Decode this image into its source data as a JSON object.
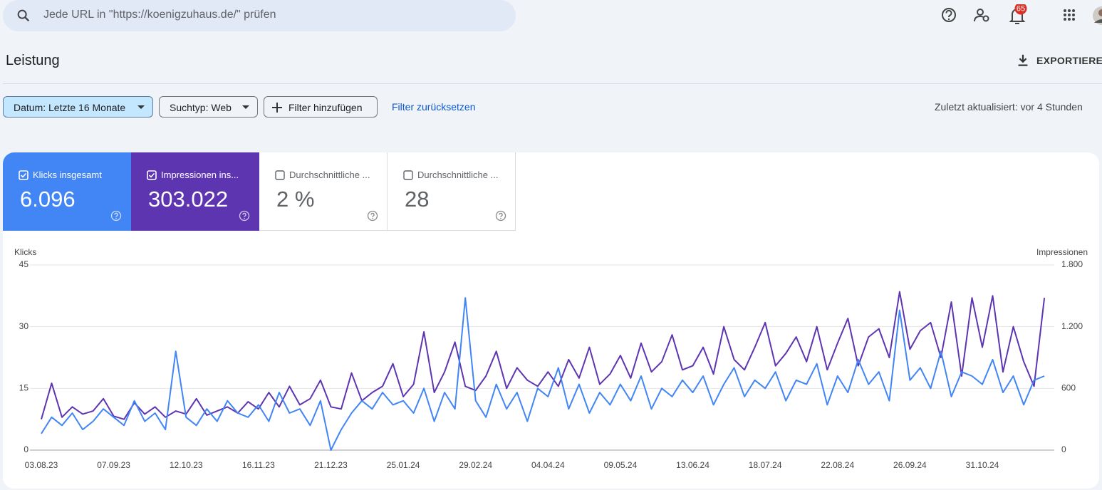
{
  "header": {
    "search_placeholder": "Jede URL in \"https://koenigzuhaus.de/\" prüfen",
    "notification_count": "65"
  },
  "page": {
    "title": "Leistung",
    "export": "EXPORTIEREN"
  },
  "filters": {
    "chips": [
      "Datum: Letzte 16 Monate",
      "Suchtyp: Web",
      "Filter hinzufügen"
    ],
    "reset": "Filter zurücksetzen",
    "updated": "Zuletzt aktualisiert: vor 4 Stunden"
  },
  "metrics": [
    {
      "label": "Klicks insgesamt",
      "value": "6.096"
    },
    {
      "label": "Impressionen ins...",
      "value": "303.022"
    },
    {
      "label": "Durchschnittliche ...",
      "value": "2 %"
    },
    {
      "label": "Durchschnittliche ...",
      "value": "28"
    }
  ],
  "chart_data": {
    "type": "line",
    "y_label": "Klicks",
    "y2_label": "Impressionen",
    "categories": [
      "03.08.23",
      null,
      null,
      null,
      null,
      null,
      null,
      "07.09.23",
      null,
      null,
      null,
      null,
      null,
      null,
      "12.10.23",
      null,
      null,
      null,
      null,
      null,
      null,
      "16.11.23",
      null,
      null,
      null,
      null,
      null,
      null,
      "21.12.23",
      null,
      null,
      null,
      null,
      null,
      null,
      "25.01.24",
      null,
      null,
      null,
      null,
      null,
      null,
      "29.02.24",
      null,
      null,
      null,
      null,
      null,
      null,
      "04.04.24",
      null,
      null,
      null,
      null,
      null,
      null,
      "09.05.24",
      null,
      null,
      null,
      null,
      null,
      null,
      "13.06.24",
      null,
      null,
      null,
      null,
      null,
      null,
      "18.07.24",
      null,
      null,
      null,
      null,
      null,
      null,
      "22.08.24",
      null,
      null,
      null,
      null,
      null,
      null,
      "26.09.24",
      null,
      null,
      null,
      null,
      null,
      null,
      "31.10.24",
      null,
      null,
      null,
      null,
      null,
      null
    ],
    "series": [
      {
        "color": "#5e35b1",
        "axis": "y2",
        "values": [
          300,
          650,
          320,
          420,
          350,
          380,
          500,
          330,
          300,
          460,
          350,
          420,
          320,
          380,
          350,
          500,
          340,
          380,
          420,
          360,
          470,
          400,
          560,
          420,
          620,
          440,
          500,
          680,
          420,
          400,
          750,
          480,
          560,
          620,
          840,
          520,
          640,
          1150,
          560,
          760,
          1050,
          620,
          580,
          720,
          960,
          600,
          800,
          680,
          620,
          760,
          620,
          880,
          700,
          1000,
          640,
          740,
          920,
          700,
          1040,
          760,
          860,
          1120,
          780,
          820,
          1000,
          740,
          1200,
          880,
          780,
          1000,
          1240,
          820,
          940,
          1100,
          860,
          1200,
          780,
          1040,
          1280,
          820,
          1100,
          1180,
          900,
          1540,
          980,
          1160,
          1240,
          900,
          1440,
          720,
          1480,
          1000,
          1500,
          760,
          1200,
          860,
          620,
          1480
        ]
      },
      {
        "color": "#4285f4",
        "axis": "y",
        "values": [
          4,
          8,
          6,
          9,
          5,
          7,
          10,
          8,
          6,
          12,
          7,
          9,
          5,
          24,
          8,
          6,
          10,
          7,
          12,
          9,
          8,
          11,
          7,
          14,
          9,
          10,
          6,
          12,
          0,
          5,
          9,
          12,
          10,
          14,
          11,
          12,
          9,
          15,
          7,
          14,
          10,
          37,
          12,
          8,
          16,
          10,
          14,
          7,
          15,
          13,
          20,
          10,
          16,
          9,
          14,
          11,
          16,
          12,
          18,
          10,
          15,
          13,
          17,
          14,
          18,
          11,
          16,
          20,
          13,
          17,
          15,
          19,
          12,
          17,
          16,
          21,
          11,
          18,
          14,
          22,
          16,
          19,
          12,
          34,
          17,
          20,
          15,
          24,
          13,
          19,
          18,
          16,
          22,
          14,
          18,
          11,
          17,
          18
        ]
      }
    ],
    "ylim": [
      0,
      45
    ],
    "yticks": [
      0,
      15,
      30,
      45
    ],
    "y2lim": [
      0,
      1800
    ],
    "y2ticks": [
      0,
      600,
      {
        "value": 1200,
        "label": "1.200"
      },
      {
        "value": 1800,
        "label": "1.800"
      }
    ],
    "grid": true
  }
}
